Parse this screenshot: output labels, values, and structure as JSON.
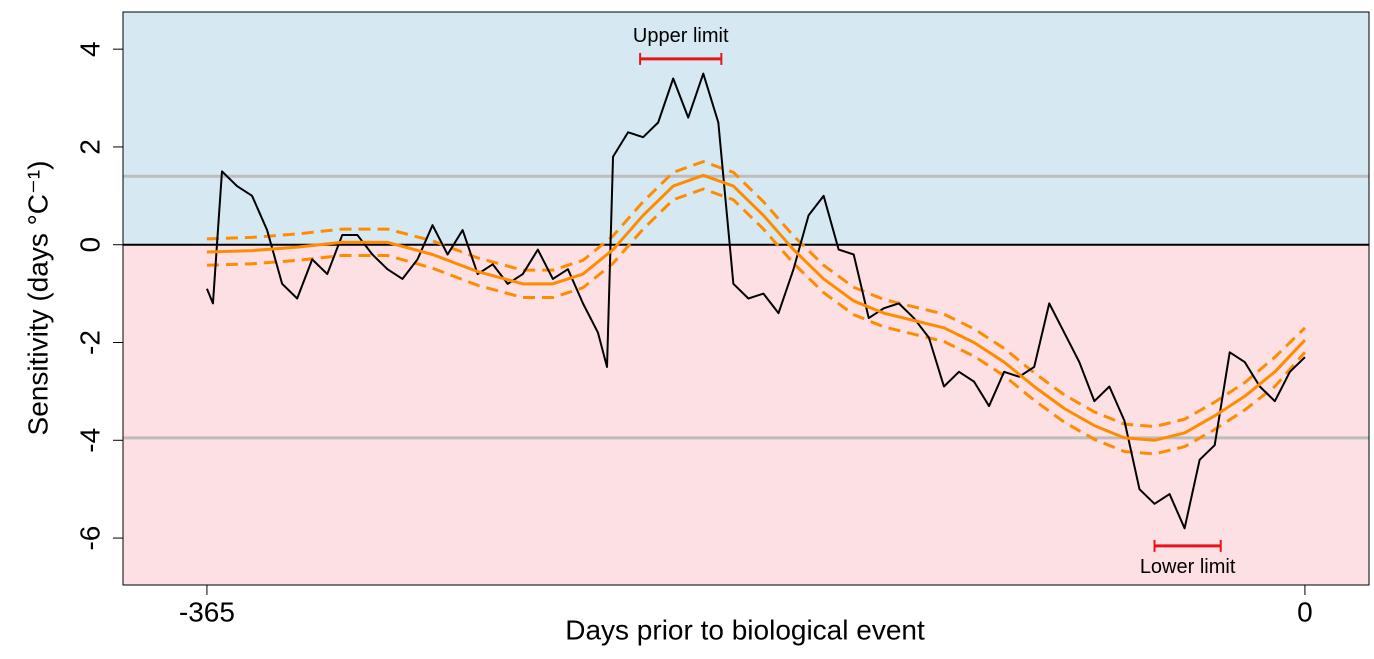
{
  "chart_data": {
    "type": "line",
    "xlabel": "Days prior to biological event",
    "ylabel": "Sensitivity (days °C⁻¹)",
    "xlim": [
      -392.9,
      21.3
    ],
    "ylim": [
      -6.96,
      4.76
    ],
    "xticks": [
      -365,
      0
    ],
    "yticks": [
      -6,
      -4,
      -2,
      0,
      2,
      4
    ],
    "baseline": 0,
    "above_color": "#d6e9f3",
    "below_color": "#fde0e4",
    "reference_lines": [
      {
        "value": 1.4,
        "color": "#bdbdbd"
      },
      {
        "value": -3.95,
        "color": "#bdbdbd"
      }
    ],
    "series": [
      {
        "color": "#000000",
        "width": 2,
        "dashed": false,
        "x": [
          -365,
          -363,
          -360,
          -355,
          -350,
          -345,
          -340,
          -335,
          -330,
          -325,
          -320,
          -315,
          -310,
          -305,
          -300,
          -295,
          -290,
          -285,
          -280,
          -275,
          -270,
          -265,
          -260,
          -255,
          -250,
          -245,
          -240,
          -235,
          -232,
          -230,
          -225,
          -220,
          -215,
          -210,
          -205,
          -200,
          -195,
          -190,
          -185,
          -180,
          -175,
          -170,
          -165,
          -160,
          -155,
          -150,
          -145,
          -140,
          -135,
          -130,
          -125,
          -120,
          -115,
          -110,
          -105,
          -100,
          -95,
          -90,
          -85,
          -80,
          -75,
          -70,
          -65,
          -60,
          -55,
          -50,
          -45,
          -40,
          -35,
          -30,
          -25,
          -20,
          -15,
          -10,
          -5,
          0
        ],
        "values": [
          -0.9,
          -1.2,
          1.5,
          1.2,
          1.0,
          0.3,
          -0.8,
          -1.1,
          -0.3,
          -0.6,
          0.2,
          0.2,
          -0.2,
          -0.5,
          -0.7,
          -0.3,
          0.4,
          -0.2,
          0.3,
          -0.6,
          -0.4,
          -0.8,
          -0.6,
          -0.1,
          -0.7,
          -0.5,
          -1.2,
          -1.8,
          -2.5,
          1.8,
          2.3,
          2.2,
          2.5,
          3.4,
          2.6,
          3.5,
          2.5,
          -0.8,
          -1.1,
          -1.0,
          -1.4,
          -0.5,
          0.6,
          1.0,
          -0.1,
          -0.2,
          -1.5,
          -1.3,
          -1.2,
          -1.5,
          -1.9,
          -2.9,
          -2.6,
          -2.8,
          -3.3,
          -2.6,
          -2.7,
          -2.5,
          -1.2,
          -1.8,
          -2.4,
          -3.2,
          -2.9,
          -3.6,
          -5.0,
          -5.3,
          -5.1,
          -5.8,
          -4.4,
          -4.1,
          -2.2,
          -2.4,
          -2.9,
          -3.2,
          -2.6,
          -2.3
        ]
      },
      {
        "color": "#ff8c00",
        "width": 3,
        "dashed": false,
        "x": [
          -365,
          -350,
          -335,
          -320,
          -305,
          -290,
          -275,
          -260,
          -250,
          -240,
          -230,
          -220,
          -210,
          -200,
          -190,
          -180,
          -170,
          -160,
          -150,
          -140,
          -130,
          -120,
          -110,
          -100,
          -90,
          -80,
          -70,
          -60,
          -50,
          -40,
          -30,
          -20,
          -10,
          0
        ],
        "values": [
          -0.15,
          -0.12,
          -0.05,
          0.05,
          0.05,
          -0.2,
          -0.55,
          -0.8,
          -0.8,
          -0.6,
          -0.1,
          0.6,
          1.2,
          1.42,
          1.2,
          0.6,
          -0.1,
          -0.7,
          -1.15,
          -1.4,
          -1.55,
          -1.7,
          -2.0,
          -2.4,
          -2.9,
          -3.35,
          -3.7,
          -3.95,
          -4.0,
          -3.85,
          -3.5,
          -3.1,
          -2.6,
          -1.95
        ]
      },
      {
        "color": "#ff8c00",
        "width": 3,
        "dashed": true,
        "x": [
          -365,
          -350,
          -335,
          -320,
          -305,
          -290,
          -275,
          -260,
          -250,
          -240,
          -230,
          -220,
          -210,
          -200,
          -190,
          -180,
          -170,
          -160,
          -150,
          -140,
          -130,
          -120,
          -110,
          -100,
          -90,
          -80,
          -70,
          -60,
          -50,
          -40,
          -30,
          -20,
          -10,
          0
        ],
        "values": [
          0.12,
          0.15,
          0.22,
          0.32,
          0.32,
          0.08,
          -0.27,
          -0.52,
          -0.52,
          -0.32,
          0.18,
          0.88,
          1.48,
          1.7,
          1.48,
          0.88,
          0.18,
          -0.42,
          -0.87,
          -1.12,
          -1.27,
          -1.42,
          -1.72,
          -2.12,
          -2.62,
          -3.07,
          -3.42,
          -3.67,
          -3.72,
          -3.57,
          -3.22,
          -2.82,
          -2.3,
          -1.7
        ]
      },
      {
        "color": "#ff8c00",
        "width": 3,
        "dashed": true,
        "x": [
          -365,
          -350,
          -335,
          -320,
          -305,
          -290,
          -275,
          -260,
          -250,
          -240,
          -230,
          -220,
          -210,
          -200,
          -190,
          -180,
          -170,
          -160,
          -150,
          -140,
          -130,
          -120,
          -110,
          -100,
          -90,
          -80,
          -70,
          -60,
          -50,
          -40,
          -30,
          -20,
          -10,
          0
        ],
        "values": [
          -0.42,
          -0.39,
          -0.32,
          -0.22,
          -0.22,
          -0.48,
          -0.83,
          -1.08,
          -1.08,
          -0.88,
          -0.38,
          0.32,
          0.92,
          1.14,
          0.92,
          0.32,
          -0.38,
          -0.98,
          -1.43,
          -1.68,
          -1.83,
          -1.98,
          -2.28,
          -2.68,
          -3.18,
          -3.63,
          -3.98,
          -4.23,
          -4.28,
          -4.13,
          -3.78,
          -3.38,
          -2.9,
          -2.2
        ]
      }
    ],
    "annotations": [
      {
        "text": "Upper limit",
        "x": [
          -221,
          -194
        ],
        "y": 3.8,
        "color": "#e8141c",
        "label_side": "above"
      },
      {
        "text": "Lower limit",
        "x": [
          -50,
          -28
        ],
        "y": -6.16,
        "color": "#e8141c",
        "label_side": "below"
      }
    ]
  }
}
